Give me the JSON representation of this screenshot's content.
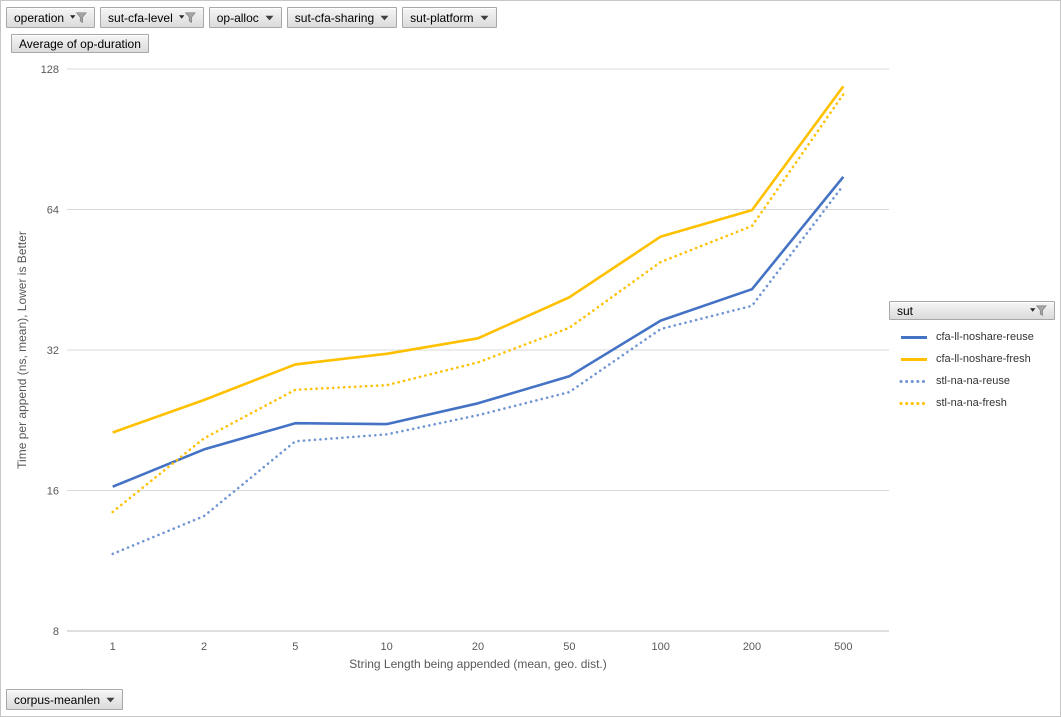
{
  "pivot_fields": {
    "top_filters": [
      {
        "label": "operation",
        "filtered": true,
        "icon": "filter-funnel-icon"
      },
      {
        "label": "sut-cfa-level",
        "filtered": true,
        "icon": "filter-funnel-icon"
      },
      {
        "label": "op-alloc",
        "filtered": false,
        "icon": "chevron-down-icon"
      },
      {
        "label": "sut-cfa-sharing",
        "filtered": false,
        "icon": "chevron-down-icon"
      },
      {
        "label": "sut-platform",
        "filtered": false,
        "icon": "chevron-down-icon"
      }
    ],
    "value_field": {
      "label": "Average of op-duration"
    },
    "legend_field": {
      "label": "sut",
      "filtered": true,
      "icon": "filter-funnel-icon"
    },
    "axis_field": {
      "label": "corpus-meanlen",
      "filtered": false,
      "icon": "chevron-down-icon"
    }
  },
  "colors": {
    "series_blue": "#4472C4",
    "series_yellow": "#FFC000",
    "series_blue_light": "#7296D4",
    "gridline": "#D9D9D9",
    "axis_line": "#BFBFBF",
    "axis_text": "#595959"
  },
  "chart_data": {
    "type": "line",
    "title": "",
    "legend_position": "right",
    "grid": "horizontal",
    "x_axis": {
      "title": "String Length being appended (mean, geo. dist.)",
      "categories": [
        "1",
        "2",
        "5",
        "10",
        "20",
        "50",
        "100",
        "200",
        "500"
      ],
      "scale": "category"
    },
    "y_axis": {
      "title": "Time per append (ns, mean),  Lower is Better",
      "scale": "log2",
      "ticks": [
        128,
        64,
        32,
        16,
        8
      ],
      "range": [
        8,
        128
      ]
    },
    "series": [
      {
        "name": "cfa-ll-noshare-reuse",
        "color": "#4472C4",
        "dash": "solid",
        "values": [
          16.3,
          19.6,
          22.3,
          22.2,
          24.6,
          28.1,
          37.0,
          43.2,
          75.2
        ]
      },
      {
        "name": "cfa-ll-noshare-fresh",
        "color": "#FFC000",
        "dash": "solid",
        "values": [
          21.3,
          25.0,
          29.8,
          31.4,
          33.9,
          41.5,
          56.0,
          63.8,
          117.5
        ]
      },
      {
        "name": "stl-na-na-reuse",
        "color": "#7296D4",
        "dash": "dot",
        "values": [
          11.7,
          14.1,
          20.4,
          21.1,
          23.2,
          26.0,
          35.5,
          39.8,
          72.1
        ]
      },
      {
        "name": "stl-na-na-fresh",
        "color": "#FFC000",
        "dash": "dot",
        "values": [
          14.4,
          20.7,
          26.3,
          26.9,
          30.1,
          35.7,
          49.4,
          59.0,
          113.0
        ]
      }
    ]
  }
}
